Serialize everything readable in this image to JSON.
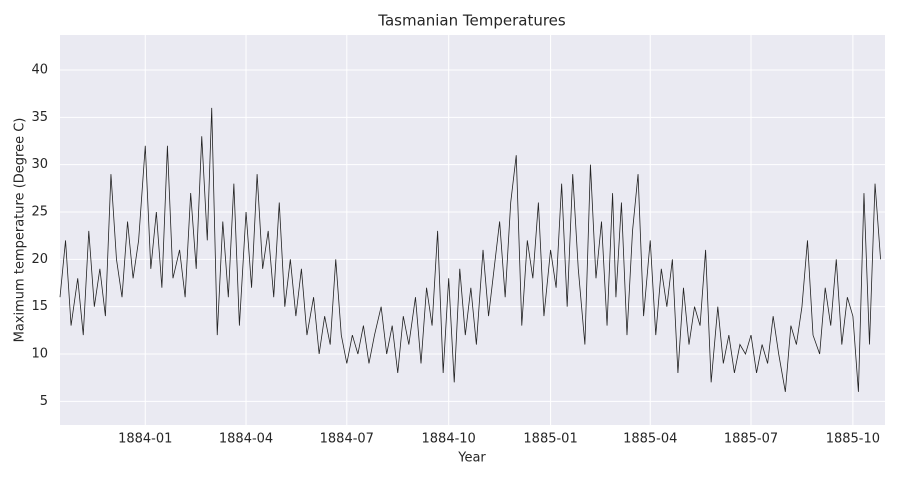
{
  "chart_data": {
    "type": "line",
    "title": "Tasmanian Temperatures",
    "xlabel": "Year",
    "ylabel": "Maximum temperature (Degree C)",
    "x": [
      "1883-10-16",
      "1883-10-21",
      "1883-10-26",
      "1883-11-01",
      "1883-11-06",
      "1883-11-11",
      "1883-11-16",
      "1883-11-21",
      "1883-11-26",
      "1883-12-01",
      "1883-12-06",
      "1883-12-11",
      "1883-12-16",
      "1883-12-21",
      "1883-12-26",
      "1884-01-01",
      "1884-01-06",
      "1884-01-11",
      "1884-01-16",
      "1884-01-21",
      "1884-01-26",
      "1884-02-01",
      "1884-02-06",
      "1884-02-11",
      "1884-02-16",
      "1884-02-21",
      "1884-02-26",
      "1884-03-01",
      "1884-03-06",
      "1884-03-11",
      "1884-03-16",
      "1884-03-21",
      "1884-03-26",
      "1884-04-01",
      "1884-04-06",
      "1884-04-11",
      "1884-04-16",
      "1884-04-21",
      "1884-04-26",
      "1884-05-01",
      "1884-05-06",
      "1884-05-11",
      "1884-05-16",
      "1884-05-21",
      "1884-05-26",
      "1884-06-01",
      "1884-06-06",
      "1884-06-11",
      "1884-06-16",
      "1884-06-21",
      "1884-06-26",
      "1884-07-01",
      "1884-07-06",
      "1884-07-11",
      "1884-07-16",
      "1884-07-21",
      "1884-07-26",
      "1884-08-01",
      "1884-08-06",
      "1884-08-11",
      "1884-08-16",
      "1884-08-21",
      "1884-08-26",
      "1884-09-01",
      "1884-09-06",
      "1884-09-11",
      "1884-09-16",
      "1884-09-21",
      "1884-09-26",
      "1884-10-01",
      "1884-10-06",
      "1884-10-11",
      "1884-10-16",
      "1884-10-21",
      "1884-10-26",
      "1884-11-01",
      "1884-11-06",
      "1884-11-11",
      "1884-11-16",
      "1884-11-21",
      "1884-11-26",
      "1884-12-01",
      "1884-12-06",
      "1884-12-11",
      "1884-12-16",
      "1884-12-21",
      "1884-12-26",
      "1885-01-01",
      "1885-01-06",
      "1885-01-11",
      "1885-01-16",
      "1885-01-21",
      "1885-01-26",
      "1885-02-01",
      "1885-02-06",
      "1885-02-11",
      "1885-02-16",
      "1885-02-21",
      "1885-02-26",
      "1885-03-01",
      "1885-03-06",
      "1885-03-11",
      "1885-03-16",
      "1885-03-21",
      "1885-03-26",
      "1885-04-01",
      "1885-04-06",
      "1885-04-11",
      "1885-04-16",
      "1885-04-21",
      "1885-04-26",
      "1885-05-01",
      "1885-05-06",
      "1885-05-11",
      "1885-05-16",
      "1885-05-21",
      "1885-05-26",
      "1885-06-01",
      "1885-06-06",
      "1885-06-11",
      "1885-06-16",
      "1885-06-21",
      "1885-06-26",
      "1885-07-01",
      "1885-07-06",
      "1885-07-11",
      "1885-07-16",
      "1885-07-21",
      "1885-07-26",
      "1885-08-01",
      "1885-08-06",
      "1885-08-11",
      "1885-08-16",
      "1885-08-21",
      "1885-08-26",
      "1885-09-01",
      "1885-09-06",
      "1885-09-11",
      "1885-09-16",
      "1885-09-21",
      "1885-09-26",
      "1885-10-01",
      "1885-10-06",
      "1885-10-11",
      "1885-10-16",
      "1885-10-21",
      "1885-10-26"
    ],
    "series": [
      {
        "color": "#222222",
        "values": [
          16,
          22,
          13,
          18,
          12,
          23,
          15,
          19,
          14,
          29,
          20,
          16,
          24,
          18,
          22,
          32,
          19,
          25,
          17,
          32,
          18,
          21,
          16,
          27,
          19,
          33,
          22,
          36,
          12,
          24,
          16,
          28,
          13,
          25,
          17,
          29,
          19,
          23,
          16,
          26,
          15,
          20,
          14,
          19,
          12,
          16,
          10,
          14,
          11,
          20,
          12,
          9,
          12,
          10,
          13,
          9,
          12,
          15,
          10,
          13,
          8,
          14,
          11,
          16,
          9,
          17,
          13,
          23,
          8,
          18,
          7,
          19,
          12,
          17,
          11,
          21,
          14,
          19,
          24,
          16,
          26,
          31,
          13,
          22,
          18,
          26,
          14,
          21,
          17,
          28,
          15,
          29,
          19,
          11,
          30,
          18,
          24,
          13,
          27,
          16,
          26,
          12,
          23,
          29,
          14,
          22,
          12,
          19,
          15,
          20,
          8,
          17,
          11,
          15,
          13,
          21,
          7,
          15,
          9,
          12,
          8,
          11,
          10,
          12,
          8,
          11,
          9,
          14,
          10,
          6,
          13,
          11,
          15,
          22,
          12,
          10,
          17,
          13,
          20,
          11,
          16,
          14,
          6,
          27,
          11,
          28,
          20
        ]
      }
    ],
    "xlim": [
      "1883-10-16",
      "1885-10-30"
    ],
    "xticks": [
      "1884-01",
      "1884-04",
      "1884-07",
      "1884-10",
      "1885-01",
      "1885-04",
      "1885-07",
      "1885-10"
    ],
    "ylim": [
      2.5,
      43.7
    ],
    "yticks": [
      5,
      10,
      15,
      20,
      25,
      30,
      35,
      40
    ],
    "grid": true
  }
}
